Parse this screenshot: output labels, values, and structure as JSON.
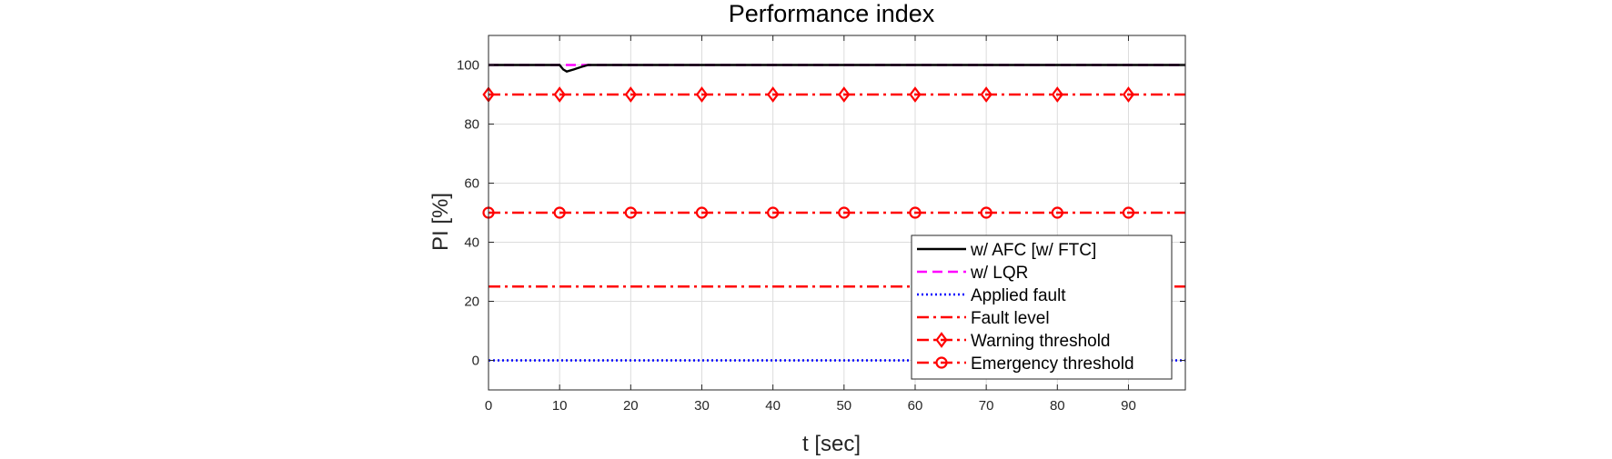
{
  "chart_data": {
    "type": "line",
    "title": "Performance index",
    "xlabel": "t [sec]",
    "ylabel": "PI [%]",
    "xlim": [
      0,
      98
    ],
    "ylim": [
      -10,
      110
    ],
    "xticks": [
      0,
      10,
      20,
      30,
      40,
      50,
      60,
      70,
      80,
      90
    ],
    "yticks": [
      0,
      20,
      40,
      60,
      80,
      100
    ],
    "grid": true,
    "legend_position": "bottom-right",
    "series": [
      {
        "name": "w/ AFC [w/ FTC]",
        "color": "#000000",
        "style": "solid",
        "marker": "none",
        "x": [
          0,
          10,
          10.5,
          11,
          12,
          13,
          14,
          98
        ],
        "y": [
          100,
          100,
          98.5,
          97.8,
          98.5,
          99.3,
          100,
          100
        ]
      },
      {
        "name": "w/ LQR",
        "color": "#ff00ff",
        "style": "dashed",
        "marker": "none",
        "x": [
          0,
          98
        ],
        "y": [
          100,
          100
        ]
      },
      {
        "name": "Applied fault",
        "color": "#0000ff",
        "style": "dotted",
        "marker": "none",
        "x": [
          0,
          98
        ],
        "y": [
          0,
          0
        ]
      },
      {
        "name": "Fault level",
        "color": "#ff0000",
        "style": "dashdot",
        "marker": "none",
        "x": [
          0,
          98
        ],
        "y": [
          25,
          25
        ]
      },
      {
        "name": "Warning threshold",
        "color": "#ff0000",
        "style": "dashdot",
        "marker": "diamond",
        "x": [
          0,
          98
        ],
        "y": [
          90,
          90
        ],
        "marker_x": [
          0,
          10,
          20,
          30,
          40,
          50,
          60,
          70,
          80,
          90
        ]
      },
      {
        "name": "Emergency threshold",
        "color": "#ff0000",
        "style": "dashdot",
        "marker": "circle",
        "x": [
          0,
          98
        ],
        "y": [
          50,
          50
        ],
        "marker_x": [
          0,
          10,
          20,
          30,
          40,
          50,
          60,
          70,
          80,
          90
        ]
      }
    ]
  }
}
